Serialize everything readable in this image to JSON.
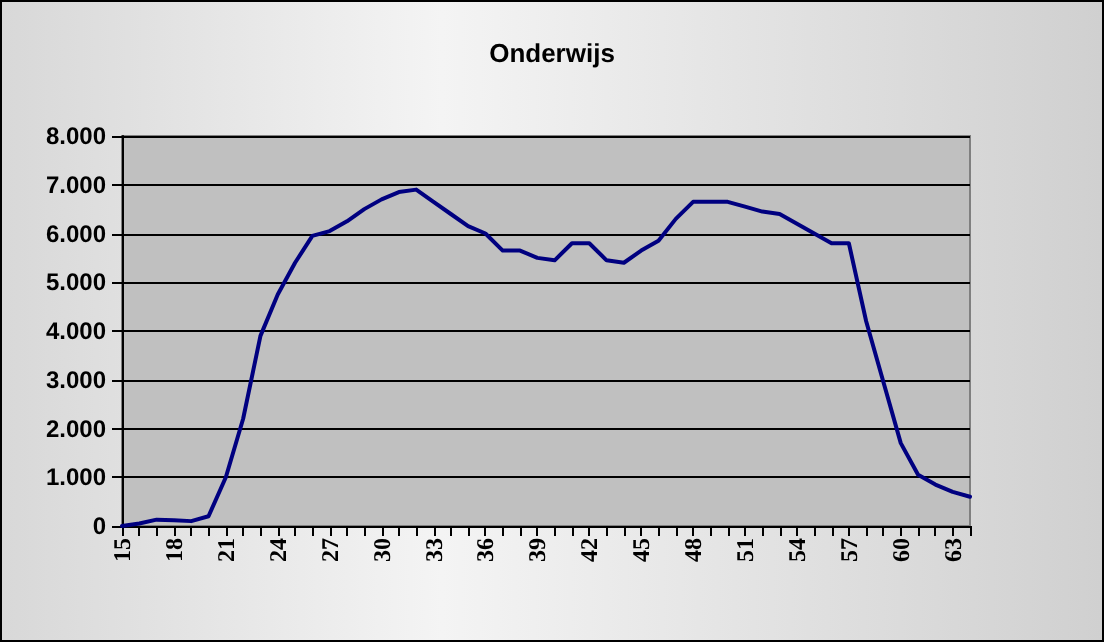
{
  "chart_data": {
    "type": "line",
    "title": "Onderwijs",
    "categories": [
      "15",
      null,
      null,
      "18",
      null,
      null,
      "21",
      null,
      null,
      "24",
      null,
      null,
      "27",
      null,
      null,
      "30",
      null,
      null,
      "33",
      null,
      null,
      "36",
      null,
      null,
      "39",
      null,
      null,
      "42",
      null,
      null,
      "45",
      null,
      null,
      "48",
      null,
      null,
      "51",
      null,
      null,
      "54",
      null,
      null,
      "57",
      null,
      null,
      "60",
      null,
      null,
      "63",
      null
    ],
    "series": [
      {
        "color": "#000080",
        "values": [
          0,
          50,
          130,
          120,
          100,
          200,
          1000,
          2200,
          3900,
          4750,
          5400,
          5950,
          6050,
          6250,
          6500,
          6700,
          6850,
          6900,
          6650,
          6400,
          6150,
          6000,
          5650,
          5650,
          5500,
          5450,
          5800,
          5800,
          5450,
          5400,
          5650,
          5850,
          6300,
          6650,
          6650,
          6650,
          6550,
          6450,
          6400,
          6200,
          6000,
          5800,
          5800,
          4200,
          2950,
          1700,
          1050,
          850,
          700,
          600
        ]
      }
    ],
    "ylim": [
      0,
      8000
    ],
    "yticks": [
      {
        "value": 0,
        "label": "0"
      },
      {
        "value": 1000,
        "label": "1.000"
      },
      {
        "value": 2000,
        "label": "2.000"
      },
      {
        "value": 3000,
        "label": "3.000"
      },
      {
        "value": 4000,
        "label": "4.000"
      },
      {
        "value": 5000,
        "label": "5.000"
      },
      {
        "value": 6000,
        "label": "6.000"
      },
      {
        "value": 7000,
        "label": "7.000"
      },
      {
        "value": 8000,
        "label": "8.000"
      }
    ],
    "grid": "y",
    "marker": "none",
    "line_style": "solid"
  }
}
